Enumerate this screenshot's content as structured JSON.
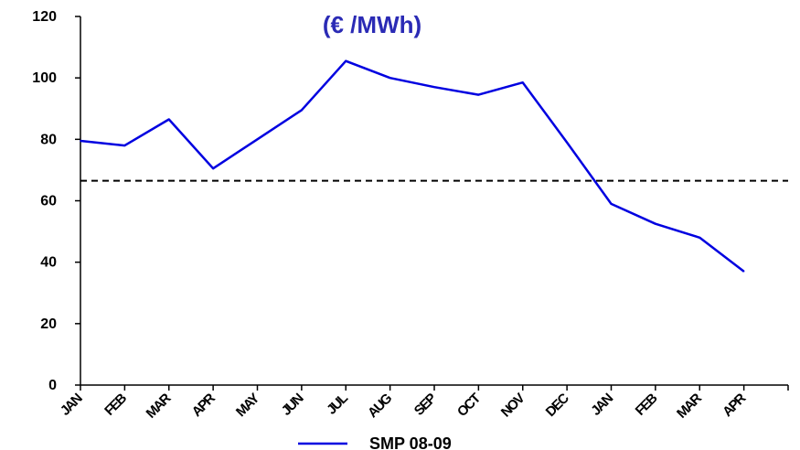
{
  "chart_data": {
    "type": "line",
    "title": "(€ /MWh)",
    "categories": [
      "JAN",
      "FEB",
      "MAR",
      "APR",
      "MAY",
      "JUN",
      "JUL",
      "AUG",
      "SEP",
      "OCT",
      "NOV",
      "DEC",
      "JAN",
      "FEB",
      "MAR",
      "APR"
    ],
    "series": [
      {
        "name": "SMP 08-09",
        "color": "#0000e0",
        "values": [
          79.5,
          78,
          86.5,
          70.5,
          80,
          89.5,
          105.5,
          100,
          97,
          94.5,
          98.5,
          79,
          59,
          52.5,
          48,
          37
        ]
      }
    ],
    "reference_line": {
      "value": 66.5,
      "style": "dashed",
      "color": "#000000"
    },
    "yticks": [
      "0",
      "20",
      "40",
      "60",
      "80",
      "100",
      "120"
    ],
    "ylim": [
      0,
      120
    ],
    "grid": false,
    "legend_position": "bottom",
    "title_color": "#2b2bb5"
  }
}
